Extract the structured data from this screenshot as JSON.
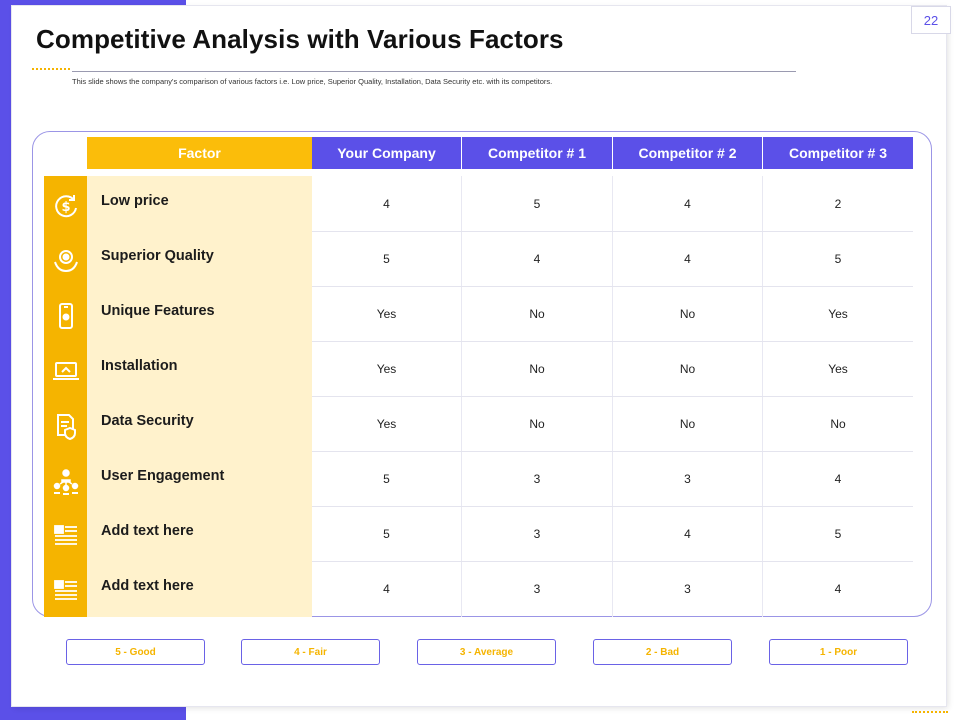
{
  "slide": {
    "number": "22",
    "title": "Competitive Analysis with Various Factors",
    "subtitle": "This slide shows the company's comparison of various factors i.e. Low price, Superior Quality, Installation, Data Security etc. with its competitors."
  },
  "colors": {
    "accent": "#5b50e8",
    "factor_header": "#fbbd0a",
    "icon_column": "#f5b400",
    "factor_column": "#fff2cc"
  },
  "table": {
    "headers": [
      "Factor",
      "Your Company",
      "Competitor # 1",
      "Competitor # 2",
      "Competitor # 3"
    ],
    "rows": [
      {
        "icon": "dollar-refresh-icon",
        "factor": "Low price",
        "values": [
          "4",
          "5",
          "4",
          "2"
        ]
      },
      {
        "icon": "quality-badge-hand-icon",
        "factor": "Superior Quality",
        "values": [
          "5",
          "4",
          "4",
          "5"
        ]
      },
      {
        "icon": "smartphone-icon",
        "factor": "Unique Features",
        "values": [
          "Yes",
          "No",
          "No",
          "Yes"
        ]
      },
      {
        "icon": "laptop-install-icon",
        "factor": "Installation",
        "values": [
          "Yes",
          "No",
          "No",
          "Yes"
        ]
      },
      {
        "icon": "document-shield-icon",
        "factor": "Data Security",
        "values": [
          "Yes",
          "No",
          "No",
          "No"
        ]
      },
      {
        "icon": "user-network-icon",
        "factor": "User Engagement",
        "values": [
          "5",
          "3",
          "3",
          "4"
        ]
      },
      {
        "icon": "text-lines-icon",
        "factor": "Add text here",
        "values": [
          "5",
          "3",
          "4",
          "5"
        ]
      },
      {
        "icon": "text-lines-icon",
        "factor": "Add text here",
        "values": [
          "4",
          "3",
          "3",
          "4"
        ]
      }
    ]
  },
  "legend": [
    "5 - Good",
    "4 - Fair",
    "3 - Average",
    "2 - Bad",
    "1 - Poor"
  ]
}
